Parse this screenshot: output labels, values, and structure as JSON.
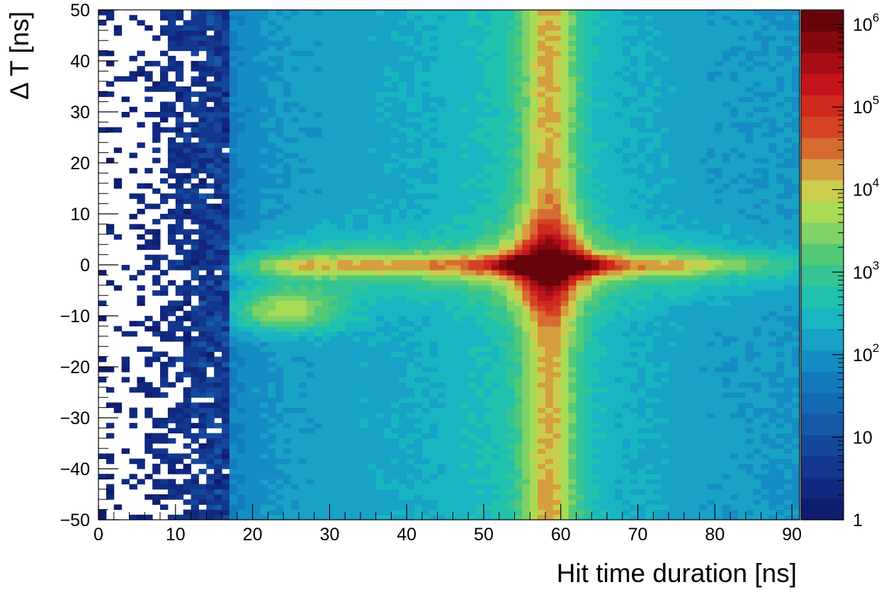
{
  "chart_data": {
    "type": "heatmap",
    "title": "",
    "xlabel": "Hit time duration [ns]",
    "ylabel": "Δ T [ns]",
    "xlim": [
      0,
      91
    ],
    "ylim": [
      -50,
      50
    ],
    "x_ticks": [
      0,
      10,
      20,
      30,
      40,
      50,
      60,
      70,
      80,
      90
    ],
    "x_tick_labels": [
      "0",
      "10",
      "20",
      "30",
      "40",
      "50",
      "60",
      "70",
      "80",
      "90"
    ],
    "y_ticks": [
      50,
      40,
      30,
      20,
      10,
      0,
      -10,
      -20,
      -30,
      -40,
      -50
    ],
    "y_tick_labels": [
      "50",
      "40",
      "30",
      "20",
      "10",
      "0",
      "−10",
      "−20",
      "−30",
      "−40",
      "−50"
    ],
    "z_scale": "log",
    "zlim": [
      1,
      1500000
    ],
    "colorbar": {
      "ticks": [
        1,
        10,
        100,
        1000,
        10000,
        100000,
        1000000
      ],
      "tick_labels": [
        {
          "base": "1",
          "exp": ""
        },
        {
          "base": "10",
          "exp": ""
        },
        {
          "base": "10",
          "exp": "2"
        },
        {
          "base": "10",
          "exp": "3"
        },
        {
          "base": "10",
          "exp": "4"
        },
        {
          "base": "10",
          "exp": "5"
        },
        {
          "base": "10",
          "exp": "6"
        }
      ],
      "colors": [
        "#0f1d6e",
        "#10297f",
        "#13378e",
        "#15479b",
        "#1659a7",
        "#1469b3",
        "#137bbd",
        "#158dc4",
        "#18a2c6",
        "#19b6c1",
        "#21c1ae",
        "#35c594",
        "#52c977",
        "#81d266",
        "#a9db56",
        "#cbcd4d",
        "#d59e3f",
        "#d66a2f",
        "#d34324",
        "#d02a1f",
        "#c3141b",
        "#a60d15",
        "#850810",
        "#66040c"
      ]
    },
    "features": [
      {
        "name": "main peak",
        "x": 58,
        "y": 0,
        "z": 1000000
      },
      {
        "name": "vertical band",
        "x_range": [
          53,
          65
        ],
        "z_typical": 3000
      },
      {
        "name": "horizontal band",
        "y": 0,
        "z_typical": 2000
      },
      {
        "name": "secondary peak",
        "x": 25,
        "y": -9,
        "z": 3000
      },
      {
        "name": "low-count region",
        "x_range": [
          0,
          15
        ],
        "z_typical": 1
      }
    ]
  }
}
